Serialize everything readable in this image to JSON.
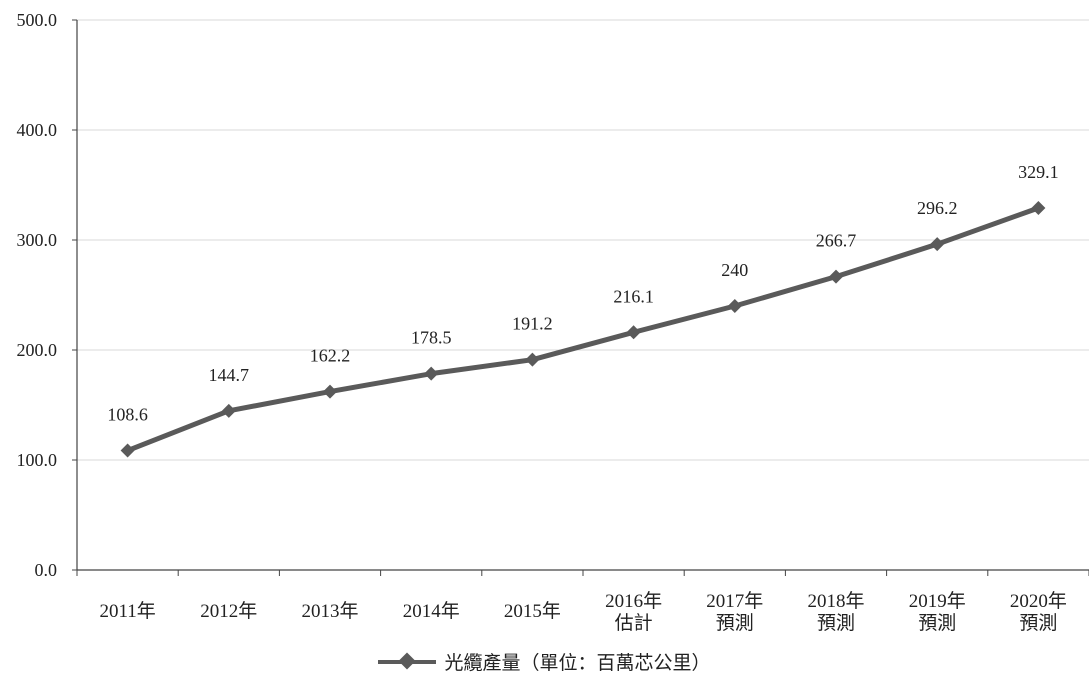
{
  "chart_data": {
    "type": "line",
    "title": "",
    "xlabel": "",
    "ylabel": "",
    "ylim": [
      0,
      500
    ],
    "y_ticks": [
      "0.0",
      "100.0",
      "200.0",
      "300.0",
      "400.0",
      "500.0"
    ],
    "grid": true,
    "legend_position": "bottom",
    "categories": [
      [
        "2011年"
      ],
      [
        "2012年"
      ],
      [
        "2013年"
      ],
      [
        "2014年"
      ],
      [
        "2015年"
      ],
      [
        "2016年",
        "估計"
      ],
      [
        "2017年",
        "預測"
      ],
      [
        "2018年",
        "預測"
      ],
      [
        "2019年",
        "預測"
      ],
      [
        "2020年",
        "預測"
      ]
    ],
    "series": [
      {
        "name": "光纜產量（單位：百萬芯公里）",
        "values": [
          108.6,
          144.7,
          162.2,
          178.5,
          191.2,
          216.1,
          240,
          266.7,
          296.2,
          329.1
        ],
        "data_labels": [
          "108.6",
          "144.7",
          "162.2",
          "178.5",
          "191.2",
          "216.1",
          "240",
          "266.7",
          "296.2",
          "329.1"
        ],
        "color": "#5a5a5a",
        "marker": "diamond"
      }
    ]
  }
}
